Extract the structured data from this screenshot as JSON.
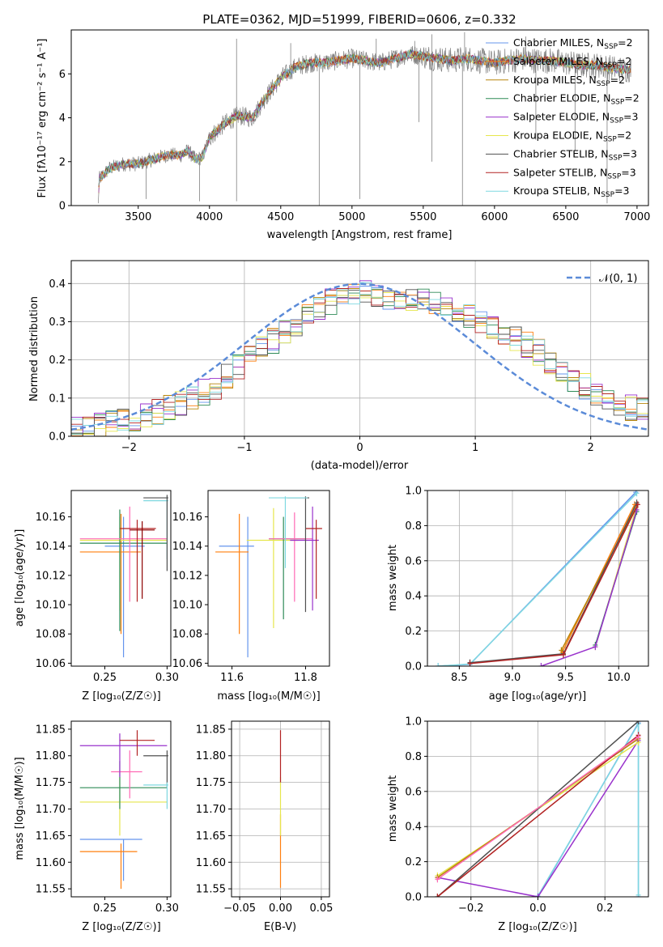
{
  "colors": {
    "spectrum": "#808080",
    "normal": "#5b8bd8",
    "grid": "#b0b0b0",
    "models": [
      "#6495ed",
      "#ff7f0e",
      "#b8860b",
      "#2e8b57",
      "#9932cc",
      "#e6e64c",
      "#505050",
      "#b22222",
      "#7fd8e0"
    ],
    "extra": [
      "#ff69b4",
      "#adff2f",
      "#8b0000"
    ]
  },
  "chart_data": [
    {
      "id": "spectrum",
      "type": "line",
      "title": "PLATE=0362, MJD=51999, FIBERID=0606, z=0.332",
      "xlabel": "wavelength [Angstrom, rest frame]",
      "ylabel": "Flux [fλ10⁻¹⁷ erg cm⁻² s⁻¹ A⁻¹]",
      "xlim": [
        3030,
        7080
      ],
      "ylim": [
        0,
        8
      ],
      "xticks": [
        3500,
        4000,
        4500,
        5000,
        5500,
        6000,
        6500,
        7000
      ],
      "yticks": [
        0,
        2,
        4,
        6
      ],
      "grid": false,
      "legend_position": "top-right",
      "legend": [
        "Chabrier MILES, N_SSP=2",
        "Salpeter MILES, N_SSP=2",
        "Kroupa MILES, N_SSP=2",
        "Chabrier ELODIE, N_SSP=2",
        "Salpeter ELODIE, N_SSP=3",
        "Kroupa ELODIE, N_SSP=2",
        "Chabrier STELIB, N_SSP=3",
        "Salpeter STELIB, N_SSP=3",
        "Kroupa STELIB, N_SSP=3"
      ],
      "continuum": [
        [
          3220,
          0
        ],
        [
          3225,
          1.2
        ],
        [
          3300,
          1.7
        ],
        [
          3400,
          1.9
        ],
        [
          3500,
          1.9
        ],
        [
          3600,
          2.1
        ],
        [
          3700,
          2.3
        ],
        [
          3800,
          2.3
        ],
        [
          3850,
          2.5
        ],
        [
          3900,
          2.1
        ],
        [
          3950,
          2.2
        ],
        [
          4000,
          3.1
        ],
        [
          4100,
          3.7
        ],
        [
          4200,
          4.1
        ],
        [
          4300,
          4.0
        ],
        [
          4400,
          5.0
        ],
        [
          4500,
          5.8
        ],
        [
          4600,
          6.3
        ],
        [
          4700,
          6.5
        ],
        [
          4800,
          6.5
        ],
        [
          4900,
          6.6
        ],
        [
          5000,
          6.7
        ],
        [
          5100,
          6.6
        ],
        [
          5200,
          6.5
        ],
        [
          5300,
          6.7
        ],
        [
          5400,
          6.9
        ],
        [
          5500,
          6.8
        ],
        [
          5600,
          6.7
        ],
        [
          5700,
          6.6
        ],
        [
          5800,
          6.7
        ],
        [
          5900,
          6.6
        ],
        [
          6000,
          6.5
        ],
        [
          6100,
          6.6
        ],
        [
          6200,
          6.7
        ],
        [
          6300,
          6.6
        ],
        [
          6400,
          6.6
        ],
        [
          6500,
          6.5
        ],
        [
          6600,
          6.4
        ],
        [
          6700,
          6.4
        ],
        [
          6800,
          6.3
        ],
        [
          6900,
          6.2
        ],
        [
          6960,
          6.2
        ]
      ],
      "spikes_down": [
        [
          3555,
          0.3
        ],
        [
          3930,
          0.2
        ],
        [
          4190,
          0.2
        ],
        [
          4770,
          0.0
        ],
        [
          5055,
          0.3
        ],
        [
          5470,
          3.8
        ],
        [
          5560,
          2.0
        ],
        [
          5775,
          0.0
        ],
        [
          6290,
          3.0
        ],
        [
          6565,
          2.5
        ],
        [
          6790,
          0.1
        ]
      ],
      "spikes_up": [
        [
          4190,
          7.6
        ],
        [
          4570,
          7.4
        ],
        [
          5170,
          7.6
        ],
        [
          5440,
          7.5
        ],
        [
          5560,
          7.8
        ],
        [
          5790,
          7.9
        ],
        [
          6220,
          7.7
        ]
      ]
    },
    {
      "id": "residuals",
      "type": "line",
      "xlabel": "(data-model)/error",
      "ylabel": "Normed distribution",
      "xlim": [
        -2.5,
        2.5
      ],
      "ylim": [
        0,
        0.46
      ],
      "xticks": [
        -2,
        -1,
        0,
        1,
        2
      ],
      "yticks": [
        0.0,
        0.1,
        0.2,
        0.3,
        0.4
      ],
      "grid": true,
      "legend_position": "top-right",
      "legend": [
        "𝒩(0, 1)"
      ],
      "bin_width": 0.1,
      "bin_start": -2.5,
      "envelope": [
        [
          -2.5,
          0.015
        ],
        [
          -2.0,
          0.04
        ],
        [
          -1.5,
          0.09
        ],
        [
          -1.2,
          0.14
        ],
        [
          -1.0,
          0.2
        ],
        [
          -0.8,
          0.24
        ],
        [
          -0.6,
          0.28
        ],
        [
          -0.4,
          0.33
        ],
        [
          -0.2,
          0.36
        ],
        [
          0.0,
          0.38
        ],
        [
          0.2,
          0.36
        ],
        [
          0.4,
          0.35
        ],
        [
          0.6,
          0.36
        ],
        [
          0.8,
          0.33
        ],
        [
          1.0,
          0.31
        ],
        [
          1.2,
          0.28
        ],
        [
          1.4,
          0.25
        ],
        [
          1.6,
          0.21
        ],
        [
          1.8,
          0.16
        ],
        [
          2.0,
          0.12
        ],
        [
          2.2,
          0.09
        ],
        [
          2.5,
          0.06
        ]
      ]
    },
    {
      "id": "age-vs-Z",
      "type": "scatter",
      "xlabel": "Z [log₁₀(Z/Z☉)]",
      "ylabel": "age [log₁₀(age/yr)]",
      "xlim": [
        0.223,
        0.303
      ],
      "ylim": [
        10.058,
        10.178
      ],
      "xticks": [
        0.25,
        0.3
      ],
      "yticks": [
        10.06,
        10.08,
        10.1,
        10.12,
        10.14,
        10.16
      ],
      "grid": false,
      "points": [
        {
          "x": 0.265,
          "y": 10.14,
          "xerr": [
            0.25,
            0.282
          ],
          "yerr": [
            10.064,
            10.16
          ],
          "c": 0
        },
        {
          "x": 0.263,
          "y": 10.136,
          "xerr": [
            0.23,
            0.279
          ],
          "yerr": [
            10.08,
            10.162
          ],
          "c": 1
        },
        {
          "x": 0.262,
          "y": 10.144,
          "xerr": [
            0.23,
            0.3
          ],
          "yerr": [
            10.096,
            10.16
          ],
          "c": 5
        },
        {
          "x": 0.262,
          "y": 10.142,
          "xerr": [
            0.23,
            0.3
          ],
          "yerr": [
            10.082,
            10.165
          ],
          "c": 3
        },
        {
          "x": 0.27,
          "y": 10.145,
          "xerr": [
            0.23,
            0.3
          ],
          "yerr": [
            10.102,
            10.167
          ],
          "c": 9
        },
        {
          "x": 0.276,
          "y": 10.152,
          "xerr": [
            0.262,
            0.291
          ],
          "yerr": [
            10.102,
            10.158
          ],
          "c": 7
        },
        {
          "x": 0.3,
          "y": 10.171,
          "xerr": [
            0.281,
            0.301
          ],
          "yerr": [
            10.131,
            10.174
          ],
          "c": 8
        },
        {
          "x": 0.3,
          "y": 10.173,
          "xerr": [
            0.281,
            0.301
          ],
          "yerr": [
            10.123,
            10.175
          ],
          "c": 6
        },
        {
          "x": 0.28,
          "y": 10.151,
          "xerr": [
            0.27,
            0.29
          ],
          "yerr": [
            10.104,
            10.157
          ],
          "c": 11
        }
      ]
    },
    {
      "id": "age-vs-mass",
      "type": "scatter",
      "xlabel": "mass [log₁₀(M/M☉)]",
      "ylabel": "",
      "xlim": [
        11.535,
        11.865
      ],
      "ylim": [
        10.058,
        10.178
      ],
      "xticks": [
        11.6,
        11.8
      ],
      "yticks": [
        10.06,
        10.08,
        10.1,
        10.12,
        10.14,
        10.16
      ],
      "grid": false,
      "points": [
        {
          "x": 11.643,
          "y": 10.14,
          "xerr": [
            11.565,
            11.66
          ],
          "yerr": [
            10.064,
            10.16
          ],
          "c": 0
        },
        {
          "x": 11.62,
          "y": 10.136,
          "xerr": [
            11.555,
            11.645
          ],
          "yerr": [
            10.08,
            10.162
          ],
          "c": 1
        },
        {
          "x": 11.713,
          "y": 10.144,
          "xerr": [
            11.64,
            11.78
          ],
          "yerr": [
            10.084,
            10.166
          ],
          "c": 5
        },
        {
          "x": 11.74,
          "y": 10.145,
          "xerr": [
            11.7,
            11.8
          ],
          "yerr": [
            10.09,
            10.16
          ],
          "c": 3
        },
        {
          "x": 11.77,
          "y": 10.145,
          "xerr": [
            11.7,
            11.82
          ],
          "yerr": [
            10.102,
            10.163
          ],
          "c": 9
        },
        {
          "x": 11.819,
          "y": 10.144,
          "xerr": [
            11.758,
            11.836
          ],
          "yerr": [
            10.096,
            10.167
          ],
          "c": 4
        },
        {
          "x": 11.829,
          "y": 10.152,
          "xerr": [
            11.8,
            11.845
          ],
          "yerr": [
            10.104,
            10.158
          ],
          "c": 7
        },
        {
          "x": 11.8,
          "y": 10.173,
          "xerr": [
            11.75,
            11.81
          ],
          "yerr": [
            10.095,
            10.174
          ],
          "c": 6
        },
        {
          "x": 11.745,
          "y": 10.173,
          "xerr": [
            11.7,
            11.805
          ],
          "yerr": [
            10.125,
            10.174
          ],
          "c": 8
        }
      ]
    },
    {
      "id": "mass-weight-vs-age",
      "type": "line",
      "xlabel": "age [log₁₀(age/yr)]",
      "ylabel": "mass weight",
      "xlim": [
        8.2,
        10.28
      ],
      "ylim": [
        0,
        1
      ],
      "xticks": [
        8.5,
        9.0,
        9.5,
        10.0
      ],
      "yticks": [
        0.0,
        0.2,
        0.4,
        0.6,
        0.8,
        1.0
      ],
      "grid": true,
      "series": [
        {
          "c": 0,
          "points": [
            [
              8.3,
              0.0
            ],
            [
              8.6,
              0.01
            ],
            [
              10.16,
              0.99
            ]
          ]
        },
        {
          "c": 8,
          "points": [
            [
              8.3,
              0.0
            ],
            [
              8.6,
              0.012
            ],
            [
              10.17,
              0.985
            ]
          ]
        },
        {
          "c": 1,
          "points": [
            [
              9.47,
              0.08
            ],
            [
              10.15,
              0.92
            ]
          ]
        },
        {
          "c": 2,
          "points": [
            [
              9.46,
              0.09
            ],
            [
              10.16,
              0.9
            ]
          ]
        },
        {
          "c": 5,
          "points": [
            [
              9.78,
              0.11
            ],
            [
              10.16,
              0.89
            ]
          ]
        },
        {
          "c": 3,
          "points": [
            [
              9.78,
              0.12
            ],
            [
              10.17,
              0.88
            ]
          ]
        },
        {
          "c": 4,
          "points": [
            [
              9.27,
              0.0
            ],
            [
              9.78,
              0.11
            ],
            [
              10.17,
              0.89
            ]
          ]
        },
        {
          "c": 6,
          "points": [
            [
              8.6,
              0.02
            ],
            [
              9.48,
              0.07
            ],
            [
              10.17,
              0.93
            ]
          ]
        },
        {
          "c": 7,
          "points": [
            [
              8.6,
              0.015
            ],
            [
              9.48,
              0.065
            ],
            [
              10.18,
              0.92
            ]
          ]
        }
      ]
    },
    {
      "id": "mass-vs-Z",
      "type": "scatter",
      "xlabel": "Z [log₁₀(Z/Z☉)]",
      "ylabel": "mass [log₁₀(M/M☉)]",
      "xlim": [
        0.223,
        0.303
      ],
      "ylim": [
        11.535,
        11.865
      ],
      "xticks": [
        0.25,
        0.3
      ],
      "yticks": [
        11.55,
        11.6,
        11.65,
        11.7,
        11.75,
        11.8,
        11.85
      ],
      "grid": false,
      "points": [
        {
          "x": 0.265,
          "y": 11.643,
          "xerr": [
            0.23,
            0.28
          ],
          "yerr": [
            11.565,
            11.643
          ],
          "c": 0
        },
        {
          "x": 0.263,
          "y": 11.62,
          "xerr": [
            0.23,
            0.276
          ],
          "yerr": [
            11.55,
            11.635
          ],
          "c": 1
        },
        {
          "x": 0.262,
          "y": 11.713,
          "xerr": [
            0.23,
            0.3
          ],
          "yerr": [
            11.65,
            11.76
          ],
          "c": 5
        },
        {
          "x": 0.262,
          "y": 11.74,
          "xerr": [
            0.23,
            0.3
          ],
          "yerr": [
            11.7,
            11.79
          ],
          "c": 3
        },
        {
          "x": 0.27,
          "y": 11.77,
          "xerr": [
            0.255,
            0.28
          ],
          "yerr": [
            11.72,
            11.81
          ],
          "c": 9
        },
        {
          "x": 0.262,
          "y": 11.819,
          "xerr": [
            0.23,
            0.3
          ],
          "yerr": [
            11.76,
            11.842
          ],
          "c": 4
        },
        {
          "x": 0.276,
          "y": 11.829,
          "xerr": [
            0.262,
            0.29
          ],
          "yerr": [
            11.8,
            11.848
          ],
          "c": 7
        },
        {
          "x": 0.3,
          "y": 11.8,
          "xerr": [
            0.281,
            0.301
          ],
          "yerr": [
            11.74,
            11.81
          ],
          "c": 6
        },
        {
          "x": 0.3,
          "y": 11.745,
          "xerr": [
            0.281,
            0.301
          ],
          "yerr": [
            11.7,
            11.75
          ],
          "c": 8
        }
      ]
    },
    {
      "id": "mass-vs-EBV",
      "type": "scatter",
      "xlabel": "E(B-V)",
      "ylabel": "",
      "xlim": [
        -0.06,
        0.06
      ],
      "ylim": [
        11.535,
        11.865
      ],
      "xticks": [
        -0.05,
        0.0,
        0.05
      ],
      "yticks": [
        11.55,
        11.6,
        11.65,
        11.7,
        11.75,
        11.8,
        11.85
      ],
      "grid": true,
      "points": [
        {
          "x": 0.0,
          "y": 11.62,
          "yerr": [
            11.552,
            11.69
          ],
          "c": 1
        },
        {
          "x": 0.0,
          "y": 11.72,
          "yerr": [
            11.65,
            11.76
          ],
          "c": 5
        },
        {
          "x": 0.0,
          "y": 11.8,
          "yerr": [
            11.75,
            11.848
          ],
          "c": 7
        }
      ]
    },
    {
      "id": "mass-weight-vs-Z",
      "type": "line",
      "xlabel": "Z [log₁₀(Z/Z☉)]",
      "ylabel": "mass weight",
      "xlim": [
        -0.33,
        0.33
      ],
      "ylim": [
        0,
        1
      ],
      "xticks": [
        -0.2,
        0.0,
        0.2
      ],
      "yticks": [
        0.0,
        0.2,
        0.4,
        0.6,
        0.8,
        1.0
      ],
      "grid": true,
      "series": [
        {
          "c": 0,
          "points": [
            [
              0.0,
              0.0
            ],
            [
              0.3,
              0.99
            ],
            [
              0.3,
              0.0
            ]
          ]
        },
        {
          "c": 8,
          "points": [
            [
              0.0,
              0.005
            ],
            [
              0.3,
              0.985
            ],
            [
              0.3,
              0.01
            ]
          ]
        },
        {
          "c": 4,
          "points": [
            [
              -0.3,
              0.11
            ],
            [
              0.0,
              0.0
            ],
            [
              0.3,
              0.89
            ]
          ]
        },
        {
          "c": 5,
          "points": [
            [
              -0.3,
              0.12
            ],
            [
              0.3,
              0.88
            ]
          ]
        },
        {
          "c": 2,
          "points": [
            [
              -0.3,
              0.11
            ],
            [
              0.3,
              0.9
            ]
          ]
        },
        {
          "c": 6,
          "points": [
            [
              -0.3,
              0.0
            ],
            [
              0.3,
              1.0
            ]
          ]
        },
        {
          "c": 7,
          "points": [
            [
              -0.3,
              0.0
            ],
            [
              0.3,
              0.92
            ]
          ]
        },
        {
          "c": 9,
          "points": [
            [
              -0.3,
              0.1
            ],
            [
              0.3,
              0.91
            ]
          ]
        }
      ]
    }
  ]
}
